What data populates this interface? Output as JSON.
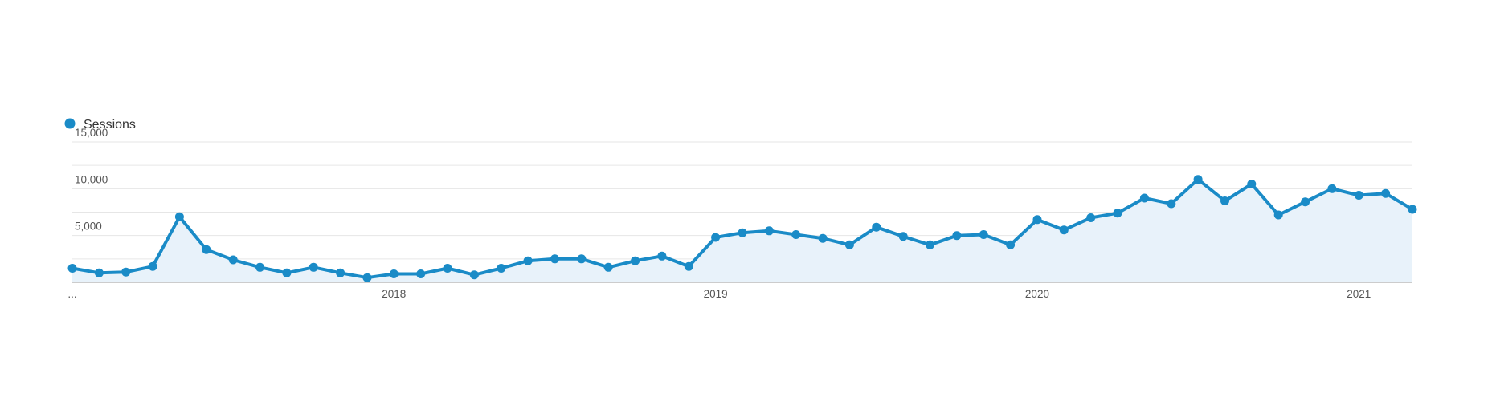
{
  "legend": {
    "label": "Sessions"
  },
  "colors": {
    "line": "#1a8bc7",
    "area": "#e8f2fa",
    "grid": "#e6e6e6",
    "axis": "#bbbbbb"
  },
  "chart_data": {
    "type": "area",
    "series": [
      {
        "name": "Sessions",
        "x": [
          "2017-01",
          "2017-02",
          "2017-03",
          "2017-04",
          "2017-05",
          "2017-06",
          "2017-07",
          "2017-08",
          "2017-09",
          "2017-10",
          "2017-11",
          "2017-12",
          "2018-01",
          "2018-02",
          "2018-03",
          "2018-04",
          "2018-05",
          "2018-06",
          "2018-07",
          "2018-08",
          "2018-09",
          "2018-10",
          "2018-11",
          "2018-12",
          "2019-01",
          "2019-02",
          "2019-03",
          "2019-04",
          "2019-05",
          "2019-06",
          "2019-07",
          "2019-08",
          "2019-09",
          "2019-10",
          "2019-11",
          "2019-12",
          "2020-01",
          "2020-02",
          "2020-03",
          "2020-04",
          "2020-05",
          "2020-06",
          "2020-07",
          "2020-08",
          "2020-09",
          "2020-10",
          "2020-11",
          "2020-12",
          "2021-01",
          "2021-02",
          "2021-03"
        ],
        "values": [
          1500,
          1000,
          1100,
          1700,
          7000,
          3500,
          2400,
          1600,
          1000,
          1600,
          1000,
          500,
          900,
          900,
          1500,
          800,
          1500,
          2300,
          2500,
          2500,
          1600,
          2300,
          2800,
          1700,
          4800,
          5300,
          5500,
          5100,
          4700,
          4000,
          5900,
          4900,
          4000,
          5000,
          5100,
          4000,
          6700,
          5600,
          6900,
          7400,
          9000,
          8400,
          11000,
          8700,
          10500,
          7200,
          8600,
          10000,
          9300,
          9500,
          7800
        ]
      }
    ],
    "x_tick_labels": [
      "...",
      "2018",
      "2019",
      "2020",
      "2021"
    ],
    "y_tick_labels": [
      "5,000",
      "10,000",
      "15,000"
    ],
    "y_ticks": [
      5000,
      10000,
      15000
    ],
    "ylim": [
      0,
      15000
    ],
    "grid": true,
    "legend_position": "top-left"
  }
}
